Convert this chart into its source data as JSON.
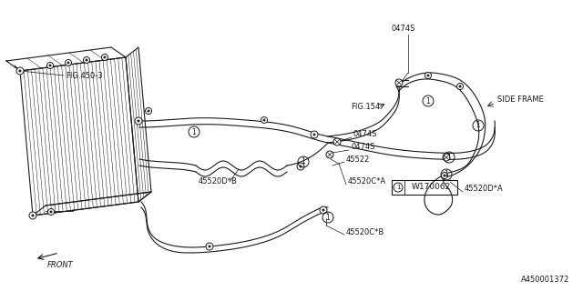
{
  "bg_color": "#ffffff",
  "line_color": "#1a1a1a",
  "part_number": "A450001372",
  "watermark": "W170062",
  "labels": {
    "fig450": "FIG.450-3",
    "fig154": "FIG.154",
    "front": "FRONT",
    "side_frame": "SIDE FRAME",
    "part_0474S_top": "0474S",
    "part_0474S_mid1": "0474S",
    "part_0474S_mid2": "0474S",
    "part_45520DB": "45520D*B",
    "part_45520CA": "45520C*A",
    "part_45520DA": "45520D*A",
    "part_45522": "45522",
    "part_45520CB": "45520C*B"
  }
}
